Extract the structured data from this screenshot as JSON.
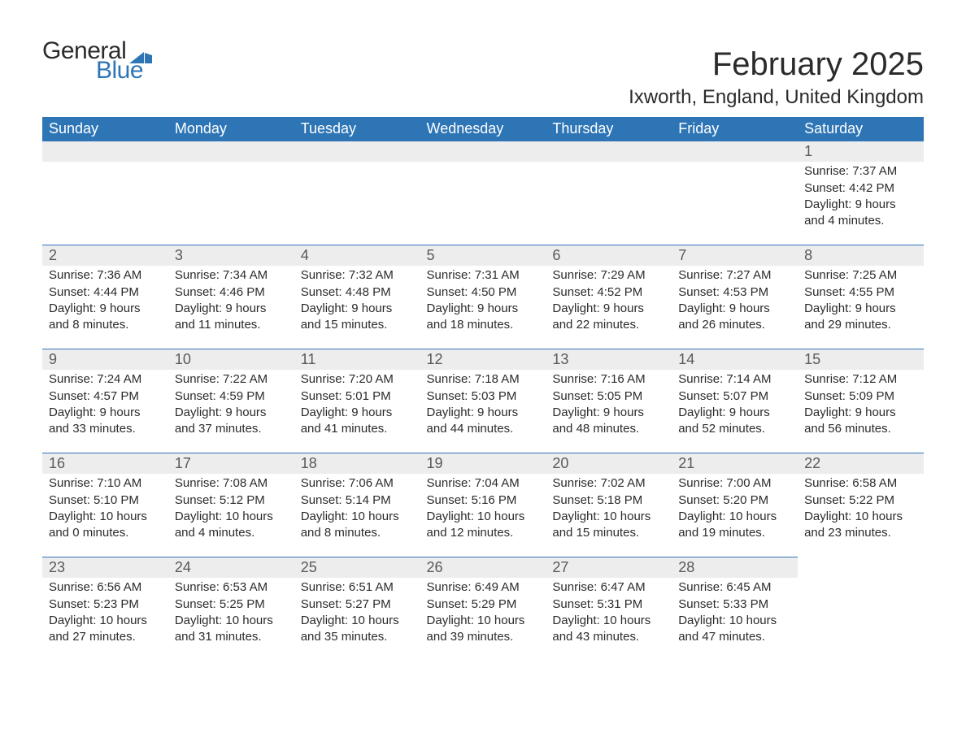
{
  "logo": {
    "general": "General",
    "blue": "Blue",
    "flag_color": "#2e75b6"
  },
  "title": "February 2025",
  "location": "Ixworth, England, United Kingdom",
  "colors": {
    "header_bg": "#2e75b6",
    "header_text": "#ffffff",
    "daynum_bg": "#ededed",
    "daynum_text": "#595959",
    "body_text": "#2b2b2b",
    "rule": "#2e75b6",
    "page_bg": "#ffffff"
  },
  "typography": {
    "title_fontsize": 40,
    "location_fontsize": 24,
    "dayheader_fontsize": 18,
    "daynum_fontsize": 18,
    "body_fontsize": 15,
    "font_family": "Segoe UI"
  },
  "columns": [
    "Sunday",
    "Monday",
    "Tuesday",
    "Wednesday",
    "Thursday",
    "Friday",
    "Saturday"
  ],
  "weeks": [
    [
      null,
      null,
      null,
      null,
      null,
      null,
      {
        "n": "1",
        "sunrise": "7:37 AM",
        "sunset": "4:42 PM",
        "daylight": "9 hours and 4 minutes."
      }
    ],
    [
      {
        "n": "2",
        "sunrise": "7:36 AM",
        "sunset": "4:44 PM",
        "daylight": "9 hours and 8 minutes."
      },
      {
        "n": "3",
        "sunrise": "7:34 AM",
        "sunset": "4:46 PM",
        "daylight": "9 hours and 11 minutes."
      },
      {
        "n": "4",
        "sunrise": "7:32 AM",
        "sunset": "4:48 PM",
        "daylight": "9 hours and 15 minutes."
      },
      {
        "n": "5",
        "sunrise": "7:31 AM",
        "sunset": "4:50 PM",
        "daylight": "9 hours and 18 minutes."
      },
      {
        "n": "6",
        "sunrise": "7:29 AM",
        "sunset": "4:52 PM",
        "daylight": "9 hours and 22 minutes."
      },
      {
        "n": "7",
        "sunrise": "7:27 AM",
        "sunset": "4:53 PM",
        "daylight": "9 hours and 26 minutes."
      },
      {
        "n": "8",
        "sunrise": "7:25 AM",
        "sunset": "4:55 PM",
        "daylight": "9 hours and 29 minutes."
      }
    ],
    [
      {
        "n": "9",
        "sunrise": "7:24 AM",
        "sunset": "4:57 PM",
        "daylight": "9 hours and 33 minutes."
      },
      {
        "n": "10",
        "sunrise": "7:22 AM",
        "sunset": "4:59 PM",
        "daylight": "9 hours and 37 minutes."
      },
      {
        "n": "11",
        "sunrise": "7:20 AM",
        "sunset": "5:01 PM",
        "daylight": "9 hours and 41 minutes."
      },
      {
        "n": "12",
        "sunrise": "7:18 AM",
        "sunset": "5:03 PM",
        "daylight": "9 hours and 44 minutes."
      },
      {
        "n": "13",
        "sunrise": "7:16 AM",
        "sunset": "5:05 PM",
        "daylight": "9 hours and 48 minutes."
      },
      {
        "n": "14",
        "sunrise": "7:14 AM",
        "sunset": "5:07 PM",
        "daylight": "9 hours and 52 minutes."
      },
      {
        "n": "15",
        "sunrise": "7:12 AM",
        "sunset": "5:09 PM",
        "daylight": "9 hours and 56 minutes."
      }
    ],
    [
      {
        "n": "16",
        "sunrise": "7:10 AM",
        "sunset": "5:10 PM",
        "daylight": "10 hours and 0 minutes."
      },
      {
        "n": "17",
        "sunrise": "7:08 AM",
        "sunset": "5:12 PM",
        "daylight": "10 hours and 4 minutes."
      },
      {
        "n": "18",
        "sunrise": "7:06 AM",
        "sunset": "5:14 PM",
        "daylight": "10 hours and 8 minutes."
      },
      {
        "n": "19",
        "sunrise": "7:04 AM",
        "sunset": "5:16 PM",
        "daylight": "10 hours and 12 minutes."
      },
      {
        "n": "20",
        "sunrise": "7:02 AM",
        "sunset": "5:18 PM",
        "daylight": "10 hours and 15 minutes."
      },
      {
        "n": "21",
        "sunrise": "7:00 AM",
        "sunset": "5:20 PM",
        "daylight": "10 hours and 19 minutes."
      },
      {
        "n": "22",
        "sunrise": "6:58 AM",
        "sunset": "5:22 PM",
        "daylight": "10 hours and 23 minutes."
      }
    ],
    [
      {
        "n": "23",
        "sunrise": "6:56 AM",
        "sunset": "5:23 PM",
        "daylight": "10 hours and 27 minutes."
      },
      {
        "n": "24",
        "sunrise": "6:53 AM",
        "sunset": "5:25 PM",
        "daylight": "10 hours and 31 minutes."
      },
      {
        "n": "25",
        "sunrise": "6:51 AM",
        "sunset": "5:27 PM",
        "daylight": "10 hours and 35 minutes."
      },
      {
        "n": "26",
        "sunrise": "6:49 AM",
        "sunset": "5:29 PM",
        "daylight": "10 hours and 39 minutes."
      },
      {
        "n": "27",
        "sunrise": "6:47 AM",
        "sunset": "5:31 PM",
        "daylight": "10 hours and 43 minutes."
      },
      {
        "n": "28",
        "sunrise": "6:45 AM",
        "sunset": "5:33 PM",
        "daylight": "10 hours and 47 minutes."
      },
      null
    ]
  ],
  "labels": {
    "sunrise": "Sunrise: ",
    "sunset": "Sunset: ",
    "daylight": "Daylight: "
  }
}
